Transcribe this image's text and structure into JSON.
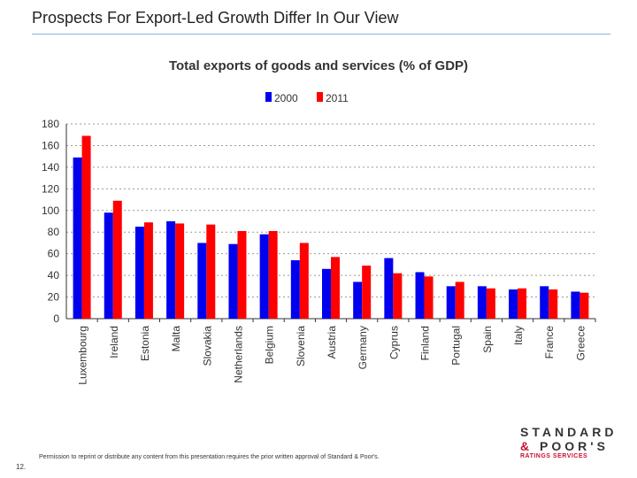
{
  "slide": {
    "title": "Prospects For Export-Led Growth Differ In Our View",
    "footer": "Permission to reprint or distribute any content from this presentation requires the prior written approval of Standard & Poor's.",
    "page_number": "12.",
    "logo": {
      "line1": "STANDARD",
      "line2a": "&",
      "line2b": "POOR'S",
      "line3": "RATINGS SERVICES"
    }
  },
  "chart_data": {
    "type": "bar",
    "title": "Total exports of goods and services (% of GDP)",
    "categories": [
      "Luxembourg",
      "Ireland",
      "Estonia",
      "Malta",
      "Slovakia",
      "Netherlands",
      "Belgium",
      "Slovenia",
      "Austria",
      "Germany",
      "Cyprus",
      "Finland",
      "Portugal",
      "Spain",
      "Italy",
      "France",
      "Greece"
    ],
    "series": [
      {
        "name": "2000",
        "color": "#0000ee",
        "values": [
          149,
          98,
          85,
          90,
          70,
          69,
          78,
          54,
          46,
          34,
          56,
          43,
          30,
          30,
          27,
          30,
          25
        ]
      },
      {
        "name": "2011",
        "color": "#ff0000",
        "values": [
          169,
          109,
          89,
          88,
          87,
          81,
          81,
          70,
          57,
          49,
          42,
          39,
          34,
          28,
          28,
          27,
          24
        ]
      }
    ],
    "ylim": [
      0,
      180
    ],
    "yticks": [
      0,
      20,
      40,
      60,
      80,
      100,
      120,
      140,
      160,
      180
    ],
    "grid": true,
    "legend": "top"
  }
}
